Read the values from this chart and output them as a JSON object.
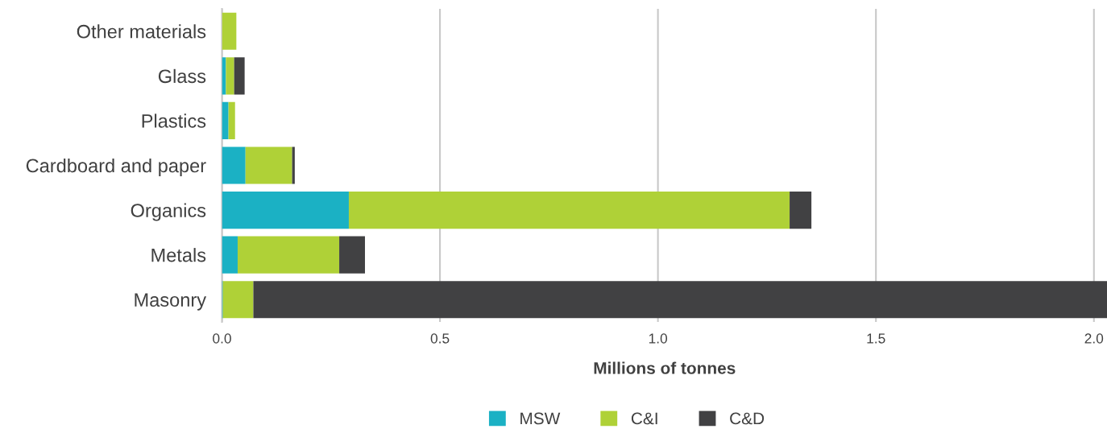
{
  "chart_data": {
    "type": "bar",
    "orientation": "horizontal",
    "stacked": true,
    "categories": [
      "Other materials",
      "Glass",
      "Plastics",
      "Cardboard and paper",
      "Organics",
      "Metals",
      "Masonry"
    ],
    "series": [
      {
        "name": "MSW",
        "color": "#1bb1c4",
        "values": [
          0,
          0.009,
          0.015,
          0.054,
          0.291,
          0.036,
          0.002
        ]
      },
      {
        "name": "C&I",
        "color": "#afd137",
        "values": [
          0.033,
          0.019,
          0.015,
          0.107,
          1.011,
          0.233,
          0.07
        ]
      },
      {
        "name": "C&D",
        "color": "#414143",
        "values": [
          0,
          0.024,
          0,
          0.006,
          0.05,
          0.059,
          1.958
        ]
      }
    ],
    "xlabel": "Millions of tonnes",
    "xlim": [
      0,
      2.03
    ],
    "xticks": [
      {
        "value": 0,
        "label": "0.0"
      },
      0.5,
      {
        "value": 1,
        "label": "1.0"
      },
      1.5,
      {
        "value": 2,
        "label": "2.0"
      }
    ],
    "grid": "x",
    "legend": "bottom"
  }
}
